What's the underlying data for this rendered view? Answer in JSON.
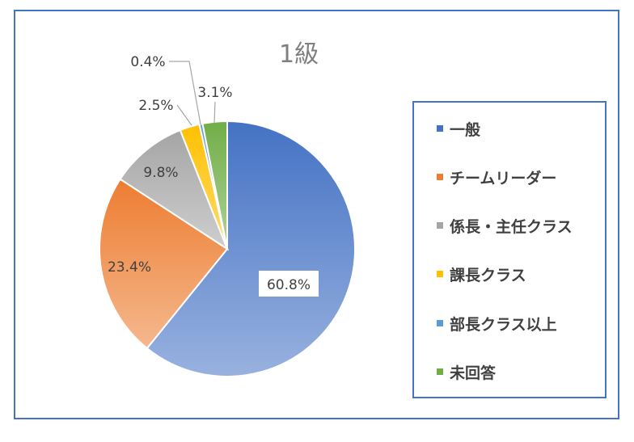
{
  "chart_data": {
    "type": "pie",
    "title": "1級",
    "legend": "right",
    "slices": [
      {
        "name": "一般",
        "value": 60.8,
        "label": "60.8%",
        "color": "#4472c4"
      },
      {
        "name": "チームリーダー",
        "value": 23.4,
        "label": "23.4%",
        "color": "#ed7d31"
      },
      {
        "name": "係長・主任クラス",
        "value": 9.8,
        "label": "9.8%",
        "color": "#a5a5a5"
      },
      {
        "name": "課長クラス",
        "value": 2.5,
        "label": "2.5%",
        "color": "#ffc000"
      },
      {
        "name": "部長クラス以上",
        "value": 0.4,
        "label": "0.4%",
        "color": "#5b9bd5"
      },
      {
        "name": "未回答",
        "value": 3.1,
        "label": "3.1%",
        "color": "#70ad47"
      }
    ]
  }
}
